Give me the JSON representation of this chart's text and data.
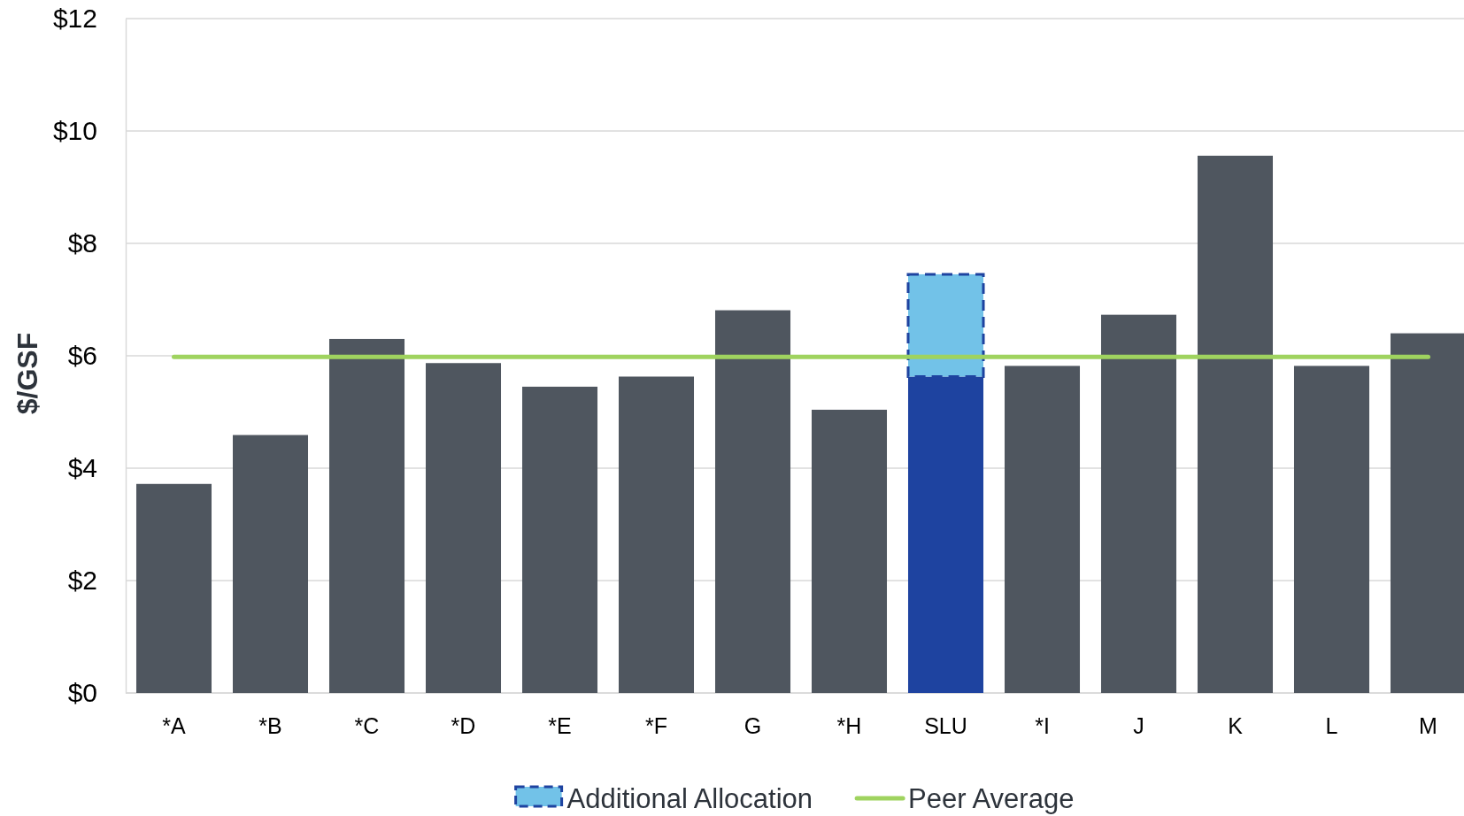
{
  "chart_data": {
    "type": "bar",
    "ylabel": "$/GSF",
    "stacked": true,
    "categories": [
      "*A",
      "*B",
      "*C",
      "*D",
      "*E",
      "*F",
      "G",
      "*H",
      "SLU",
      "*I",
      "J",
      "K",
      "L",
      "M"
    ],
    "series": [
      {
        "colors": [
          "#4f565f",
          "#4f565f",
          "#4f565f",
          "#4f565f",
          "#4f565f",
          "#4f565f",
          "#4f565f",
          "#4f565f",
          "#1e43a0",
          "#4f565f",
          "#4f565f",
          "#4f565f",
          "#4f565f",
          "#4f565f"
        ],
        "values": [
          3.72,
          4.59,
          6.3,
          5.87,
          5.45,
          5.63,
          6.81,
          5.04,
          5.63,
          5.82,
          6.73,
          9.56,
          5.82,
          6.4
        ]
      },
      {
        "name": "Additional Allocation",
        "color": "#72c2e8",
        "values": [
          null,
          null,
          null,
          null,
          null,
          null,
          null,
          null,
          1.82,
          null,
          null,
          null,
          null,
          null
        ]
      }
    ],
    "ref_lines": [
      {
        "axis": "y",
        "value": 5.98,
        "label": "Peer Average",
        "color": "#9fd35f"
      }
    ],
    "ylim": [
      0,
      12
    ],
    "yticks": [
      {
        "value": 0,
        "label": "$0"
      },
      {
        "value": 2,
        "label": "$2"
      },
      {
        "value": 4,
        "label": "$4"
      },
      {
        "value": 6,
        "label": "$6"
      },
      {
        "value": 8,
        "label": "$8"
      },
      {
        "value": 10,
        "label": "$10"
      },
      {
        "value": 12,
        "label": "$12"
      }
    ],
    "grid": "y",
    "legend": "bottom"
  }
}
